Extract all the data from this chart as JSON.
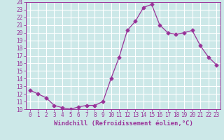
{
  "x": [
    0,
    1,
    2,
    3,
    4,
    5,
    6,
    7,
    8,
    9,
    10,
    11,
    12,
    13,
    14,
    15,
    16,
    17,
    18,
    19,
    20,
    21,
    22,
    23
  ],
  "y": [
    12.5,
    12.0,
    11.5,
    10.5,
    10.2,
    10.0,
    10.3,
    10.5,
    10.5,
    11.0,
    14.0,
    16.8,
    20.3,
    21.5,
    23.3,
    23.7,
    21.0,
    20.0,
    19.8,
    20.0,
    20.3,
    18.3,
    16.8,
    15.8
  ],
  "line_color": "#993399",
  "marker": "D",
  "markersize": 2.5,
  "bg_color": "#cce8e8",
  "grid_color": "#ffffff",
  "xlabel": "Windchill (Refroidissement éolien,°C)",
  "xlabel_fontsize": 6.5,
  "tick_fontsize": 5.5,
  "ylim": [
    10,
    24
  ],
  "xlim": [
    -0.5,
    23.5
  ],
  "yticks": [
    10,
    11,
    12,
    13,
    14,
    15,
    16,
    17,
    18,
    19,
    20,
    21,
    22,
    23,
    24
  ],
  "xticks": [
    0,
    1,
    2,
    3,
    4,
    5,
    6,
    7,
    8,
    9,
    10,
    11,
    12,
    13,
    14,
    15,
    16,
    17,
    18,
    19,
    20,
    21,
    22,
    23
  ]
}
